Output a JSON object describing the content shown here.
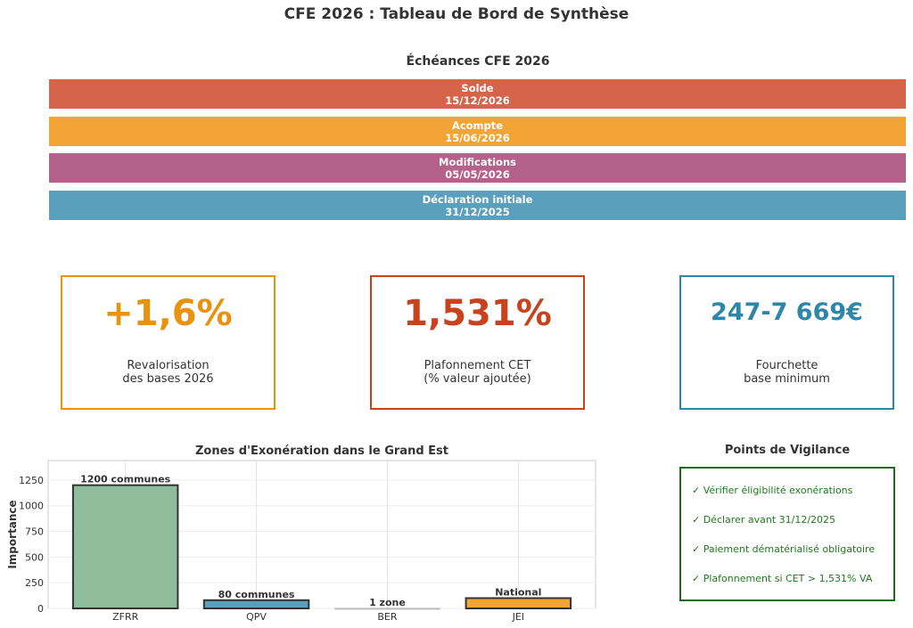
{
  "title": "CFE 2026 : Tableau de Bord de Synthèse",
  "timeline": {
    "title": "Échéances CFE 2026",
    "items": [
      {
        "label": "Solde",
        "date": "15/12/2026",
        "color": "#d4654b"
      },
      {
        "label": "Acompte",
        "date": "15/06/2026",
        "color": "#f2a535"
      },
      {
        "label": "Modifications",
        "date": "05/05/2026",
        "color": "#b5628b"
      },
      {
        "label": "Déclaration initiale",
        "date": "31/12/2025",
        "color": "#5a9fbc"
      }
    ]
  },
  "kpis": [
    {
      "value": "+1,6%",
      "label": "Revalorisation\ndes bases 2026",
      "color": "#e8920f"
    },
    {
      "value": "1,531%",
      "label": "Plafonnement CET\n(% valeur ajoutée)",
      "color": "#c8421e"
    },
    {
      "value": "247-7 669€",
      "label": "Fourchette\nbase minimum",
      "color": "#2e86a8"
    }
  ],
  "vigilance": {
    "title": "Points de Vigilance",
    "items": [
      "✓ Vérifier éligibilité exonérations",
      "✓ Déclarer avant 31/12/2025",
      "✓ Paiement dématérialisé obligatoire",
      "✓ Plafonnement si CET > 1,531% VA"
    ]
  },
  "chart_data": {
    "type": "bar",
    "title": "Zones d'Exonération dans le Grand Est",
    "xlabel": "",
    "ylabel": "Importance",
    "categories": [
      "ZFRR",
      "QPV",
      "BER",
      "JEI"
    ],
    "values": [
      1200,
      80,
      1,
      100
    ],
    "data_labels": [
      "1200 communes",
      "80 communes",
      "1 zone",
      "National"
    ],
    "colors": [
      "#8fbc9a",
      "#5a9fbc",
      "#c8c8c8",
      "#f2a535"
    ],
    "ylim": [
      0,
      1440
    ],
    "yticks": [
      0,
      250,
      500,
      750,
      1000,
      1250
    ],
    "grid": true
  }
}
